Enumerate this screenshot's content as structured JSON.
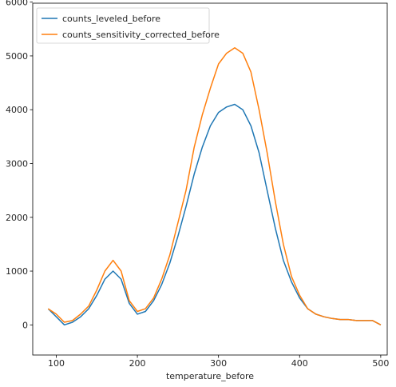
{
  "chart_data": {
    "type": "line",
    "title": "",
    "xlabel": "temperature_before",
    "ylabel": "",
    "xlim": [
      71,
      508
    ],
    "ylim": [
      -560,
      5980
    ],
    "xticks": [
      100,
      200,
      300,
      400,
      500
    ],
    "yticks": [
      0,
      1000,
      2000,
      3000,
      4000,
      5000,
      6000
    ],
    "grid": false,
    "legend_position": "upper-left",
    "series": [
      {
        "name": "counts_leveled_before",
        "color": "#1f77b4",
        "x": [
          90,
          100,
          110,
          120,
          130,
          140,
          150,
          160,
          170,
          180,
          190,
          200,
          210,
          220,
          230,
          240,
          250,
          260,
          270,
          280,
          290,
          300,
          310,
          320,
          330,
          340,
          350,
          360,
          370,
          380,
          390,
          400,
          410,
          420,
          430,
          440,
          450,
          460,
          470,
          480,
          490,
          500
        ],
        "y": [
          300,
          150,
          0,
          50,
          150,
          300,
          550,
          850,
          1000,
          850,
          400,
          200,
          250,
          450,
          750,
          1150,
          1650,
          2200,
          2800,
          3300,
          3700,
          3950,
          4050,
          4100,
          4000,
          3700,
          3200,
          2500,
          1800,
          1200,
          800,
          500,
          300,
          200,
          150,
          120,
          100,
          100,
          80,
          80,
          80,
          0
        ]
      },
      {
        "name": "counts_sensitivity_corrected_before",
        "color": "#ff7f0e",
        "x": [
          90,
          100,
          110,
          120,
          130,
          140,
          150,
          160,
          170,
          180,
          190,
          200,
          210,
          220,
          230,
          240,
          250,
          260,
          270,
          280,
          290,
          300,
          310,
          320,
          330,
          340,
          350,
          360,
          370,
          380,
          390,
          400,
          410,
          420,
          430,
          440,
          450,
          460,
          470,
          480,
          490,
          500
        ],
        "y": [
          300,
          200,
          50,
          80,
          200,
          350,
          650,
          1000,
          1200,
          1000,
          450,
          250,
          300,
          500,
          850,
          1300,
          1900,
          2500,
          3300,
          3900,
          4400,
          4850,
          5050,
          5150,
          5050,
          4700,
          4000,
          3200,
          2300,
          1500,
          900,
          550,
          300,
          200,
          150,
          120,
          100,
          100,
          80,
          80,
          80,
          0
        ]
      }
    ]
  }
}
